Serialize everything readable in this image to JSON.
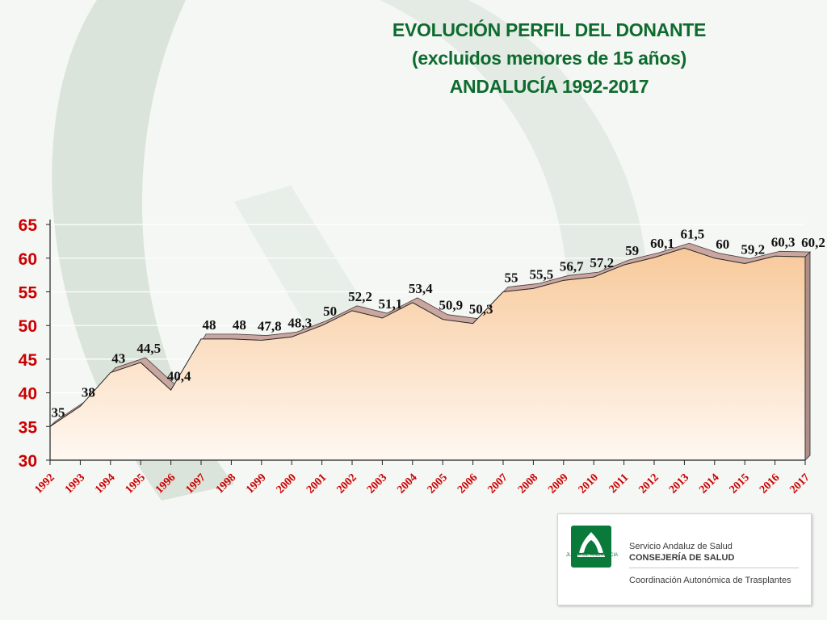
{
  "title": {
    "line1": "EVOLUCIÓN PERFIL DEL DONANTE",
    "line2": "(excluidos menores de 15 años)",
    "line3": "ANDALUCÍA 1992-2017"
  },
  "chart_data": {
    "type": "area",
    "title": "EVOLUCIÓN PERFIL DEL DONANTE (excluidos menores de 15 años) ANDALUCÍA 1992-2017",
    "xlabel": "",
    "ylabel": "",
    "ylim": [
      30,
      65
    ],
    "yticks": [
      "30",
      "35",
      "40",
      "45",
      "50",
      "55",
      "60",
      "65"
    ],
    "categories": [
      "1992",
      "1993",
      "1994",
      "1995",
      "1996",
      "1997",
      "1998",
      "1999",
      "2000",
      "2001",
      "2002",
      "2003",
      "2004",
      "2005",
      "2006",
      "2007",
      "2008",
      "2009",
      "2010",
      "2011",
      "2012",
      "2013",
      "2014",
      "2015",
      "2016",
      "2017"
    ],
    "values": [
      35,
      38,
      43,
      44.5,
      40.4,
      48,
      48,
      47.8,
      48.3,
      50,
      52.2,
      51.1,
      53.4,
      50.9,
      50.3,
      55,
      55.5,
      56.7,
      57.2,
      59,
      60.1,
      61.5,
      60,
      59.2,
      60.3,
      60.2
    ],
    "data_labels": [
      "35",
      "38",
      "43",
      "44,5",
      "40,4",
      "48",
      "48",
      "47,8",
      "48,3",
      "50",
      "52,2",
      "51,1",
      "53,4",
      "50,9",
      "50,3",
      "55",
      "55,5",
      "56,7",
      "57,2",
      "59",
      "60,1",
      "61,5",
      "60",
      "59,2",
      "60,3",
      "60,2"
    ],
    "grid": true,
    "legend": "none",
    "colors": {
      "area_top": "#f7c99a",
      "area_bottom": "#fff8f2",
      "ridge": "#c9a6a0",
      "axis_labels": "#cc0000",
      "title": "#0e6b2e"
    }
  },
  "logo": {
    "caption": "JUNTA DE ANDALUCIA",
    "line1": "Servicio Andaluz de Salud",
    "line2": "CONSEJERÍA DE SALUD",
    "line3": "Coordinación Autonómica de Trasplantes"
  }
}
